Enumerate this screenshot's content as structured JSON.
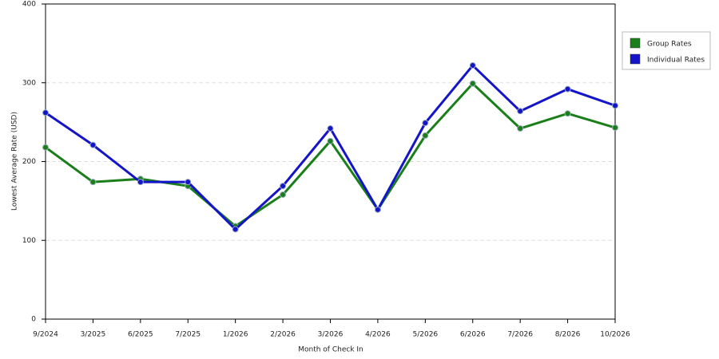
{
  "chart_data": {
    "type": "line",
    "y_label": "Lowest Average Rate (USD)",
    "x_label": "Month of Check In",
    "categories": [
      "9/2024",
      "3/2025",
      "6/2025",
      "7/2025",
      "1/2026",
      "2/2026",
      "3/2026",
      "4/2026",
      "5/2026",
      "6/2026",
      "7/2026",
      "8/2026",
      "10/2026"
    ],
    "series": [
      {
        "name": "Group Rates",
        "color": "#1a7f1a",
        "values": [
          218,
          174,
          178,
          169,
          118,
          158,
          226,
          139,
          233,
          299,
          242,
          261,
          243
        ]
      },
      {
        "name": "Individual Rates",
        "color": "#1414c8",
        "values": [
          262,
          221,
          174,
          174,
          114,
          169,
          242,
          139,
          249,
          322,
          264,
          292,
          271
        ]
      }
    ],
    "ylim": [
      0,
      400
    ],
    "yticks": [
      0,
      100,
      200,
      300,
      400
    ],
    "grid": true,
    "legend": "right"
  }
}
